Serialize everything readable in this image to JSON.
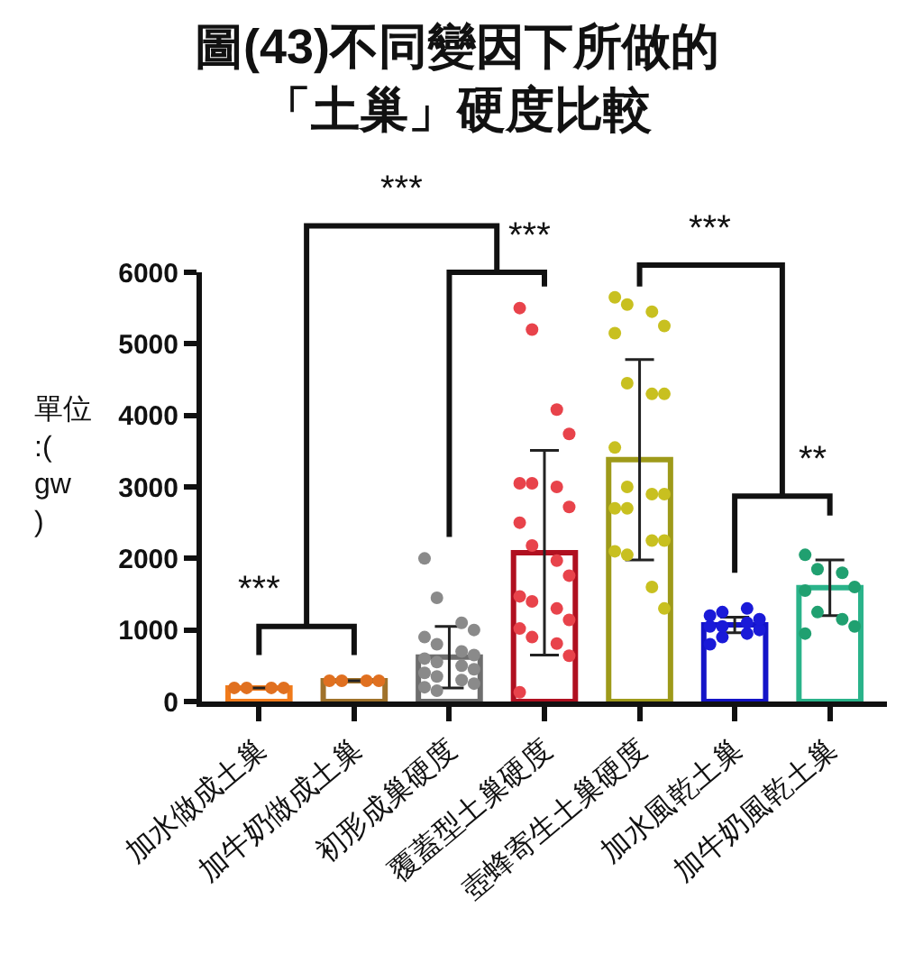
{
  "chart_data": {
    "type": "bar",
    "title": "圖(43)不同變因下所做的「土巢」硬度比較",
    "ylabel": "單位:(gw)",
    "categories": [
      "加水做成土巢",
      "加牛奶做成土巢",
      "初形成巢硬度",
      "覆蓋型土巢硬度",
      "壺蜂寄生土巢硬度",
      "加水風乾土巢",
      "加牛奶風乾土巢"
    ],
    "values": [
      190,
      290,
      620,
      2080,
      3380,
      1070,
      1590
    ],
    "colors": [
      "#f07a1a",
      "#a0722a",
      "#6e6e6e",
      "#b01020",
      "#9e9a1a",
      "#1414c8",
      "#2ab38a"
    ],
    "errors": [
      null,
      null,
      430,
      1430,
      1400,
      110,
      390
    ],
    "series": [
      {
        "type": "scatter",
        "x": [
          "加水做成土巢",
          "加水做成土巢",
          "加水做成土巢",
          "加水做成土巢",
          "加牛奶做成土巢",
          "加牛奶做成土巢",
          "加牛奶做成土巢",
          "加牛奶做成土巢"
        ],
        "values": [
          190,
          190,
          190,
          190,
          290,
          290,
          290,
          290
        ],
        "color": "#e07020"
      },
      {
        "type": "scatter",
        "x": [
          "初形成巢硬度",
          "初形成巢硬度",
          "初形成巢硬度",
          "初形成巢硬度",
          "初形成巢硬度",
          "初形成巢硬度",
          "初形成巢硬度",
          "初形成巢硬度",
          "初形成巢硬度",
          "初形成巢硬度",
          "初形成巢硬度",
          "初形成巢硬度",
          "初形成巢硬度",
          "初形成巢硬度",
          "初形成巢硬度",
          "初形成巢硬度",
          "初形成巢硬度",
          "初形成巢硬度"
        ],
        "values": [
          2000,
          1450,
          1100,
          1000,
          900,
          800,
          700,
          650,
          600,
          550,
          500,
          450,
          400,
          350,
          300,
          250,
          200,
          150
        ],
        "color": "#8a8a8a"
      },
      {
        "type": "scatter",
        "x": [
          "覆蓋型土巢硬度",
          "覆蓋型土巢硬度",
          "覆蓋型土巢硬度",
          "覆蓋型土巢硬度",
          "覆蓋型土巢硬度",
          "覆蓋型土巢硬度",
          "覆蓋型土巢硬度",
          "覆蓋型土巢硬度",
          "覆蓋型土巢硬度",
          "覆蓋型土巢硬度",
          "覆蓋型土巢硬度",
          "覆蓋型土巢硬度",
          "覆蓋型土巢硬度",
          "覆蓋型土巢硬度",
          "覆蓋型土巢硬度",
          "覆蓋型土巢硬度",
          "覆蓋型土巢硬度",
          "覆蓋型土巢硬度",
          "覆蓋型土巢硬度",
          "覆蓋型土巢硬度",
          "覆蓋型土巢硬度"
        ],
        "values": [
          5500,
          5200,
          4080,
          3740,
          3050,
          3050,
          3000,
          2720,
          2500,
          2180,
          1970,
          1760,
          1470,
          1400,
          1300,
          1140,
          1020,
          900,
          810,
          640,
          130
        ],
        "color": "#e8434b"
      },
      {
        "type": "scatter",
        "x": [
          "壺蜂寄生土巢硬度",
          "壺蜂寄生土巢硬度",
          "壺蜂寄生土巢硬度",
          "壺蜂寄生土巢硬度",
          "壺蜂寄生土巢硬度",
          "壺蜂寄生土巢硬度",
          "壺蜂寄生土巢硬度",
          "壺蜂寄生土巢硬度",
          "壺蜂寄生土巢硬度",
          "壺蜂寄生土巢硬度",
          "壺蜂寄生土巢硬度",
          "壺蜂寄生土巢硬度",
          "壺蜂寄生土巢硬度",
          "壺蜂寄生土巢硬度",
          "壺蜂寄生土巢硬度",
          "壺蜂寄生土巢硬度",
          "壺蜂寄生土巢硬度",
          "壺蜂寄生土巢硬度",
          "壺蜂寄生土巢硬度",
          "壺蜂寄生土巢硬度"
        ],
        "values": [
          5650,
          5550,
          5450,
          5250,
          5150,
          4450,
          4300,
          4300,
          3550,
          3000,
          2900,
          2900,
          2700,
          2700,
          2250,
          2250,
          2100,
          2050,
          1600,
          1300
        ],
        "color": "#c8c020"
      },
      {
        "type": "scatter",
        "x": [
          "加水風乾土巢",
          "加水風乾土巢",
          "加水風乾土巢",
          "加水風乾土巢",
          "加水風乾土巢",
          "加水風乾土巢",
          "加水風乾土巢",
          "加水風乾土巢",
          "加水風乾土巢",
          "加水風乾土巢",
          "加水風乾土巢"
        ],
        "values": [
          800,
          900,
          950,
          1000,
          1050,
          1050,
          1100,
          1150,
          1200,
          1250,
          1300
        ],
        "color": "#1a1ad8"
      },
      {
        "type": "scatter",
        "x": [
          "加牛奶風乾土巢",
          "加牛奶風乾土巢",
          "加牛奶風乾土巢",
          "加牛奶風乾土巢",
          "加牛奶風乾土巢",
          "加牛奶風乾土巢",
          "加牛奶風乾土巢",
          "加牛奶風乾土巢",
          "加牛奶風乾土巢"
        ],
        "values": [
          2050,
          1850,
          1800,
          1600,
          1550,
          1250,
          1150,
          1050,
          950
        ],
        "color": "#20a070"
      }
    ],
    "annotations": [
      "***",
      "***",
      "***",
      "***",
      "**"
    ],
    "ylim": [
      0,
      6000
    ],
    "yticks": [
      0,
      1000,
      2000,
      3000,
      4000,
      5000,
      6000
    ],
    "marker": "circle"
  }
}
